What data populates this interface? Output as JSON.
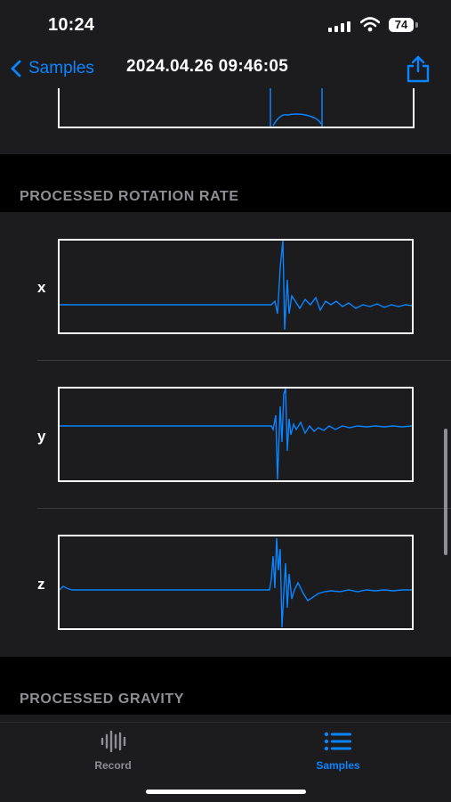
{
  "status_bar": {
    "time": "10:24",
    "battery_level": "74"
  },
  "nav": {
    "back_label": "Samples",
    "title": "2024.04.26 09:46:05",
    "share_icon": "share-icon"
  },
  "sections": [
    {
      "header": "PROCESSED ROTATION RATE",
      "axes": [
        "x",
        "y",
        "z"
      ]
    },
    {
      "header": "PROCESSED GRAVITY"
    }
  ],
  "tabs": [
    {
      "label": "Record",
      "icon": "waveform-icon",
      "selected": false
    },
    {
      "label": "Samples",
      "icon": "list-icon",
      "selected": true
    }
  ],
  "colors": {
    "accent": "#0a84ff",
    "background": "#000000",
    "panel": "#1c1c1e",
    "section_header": "#8e8e93"
  }
}
